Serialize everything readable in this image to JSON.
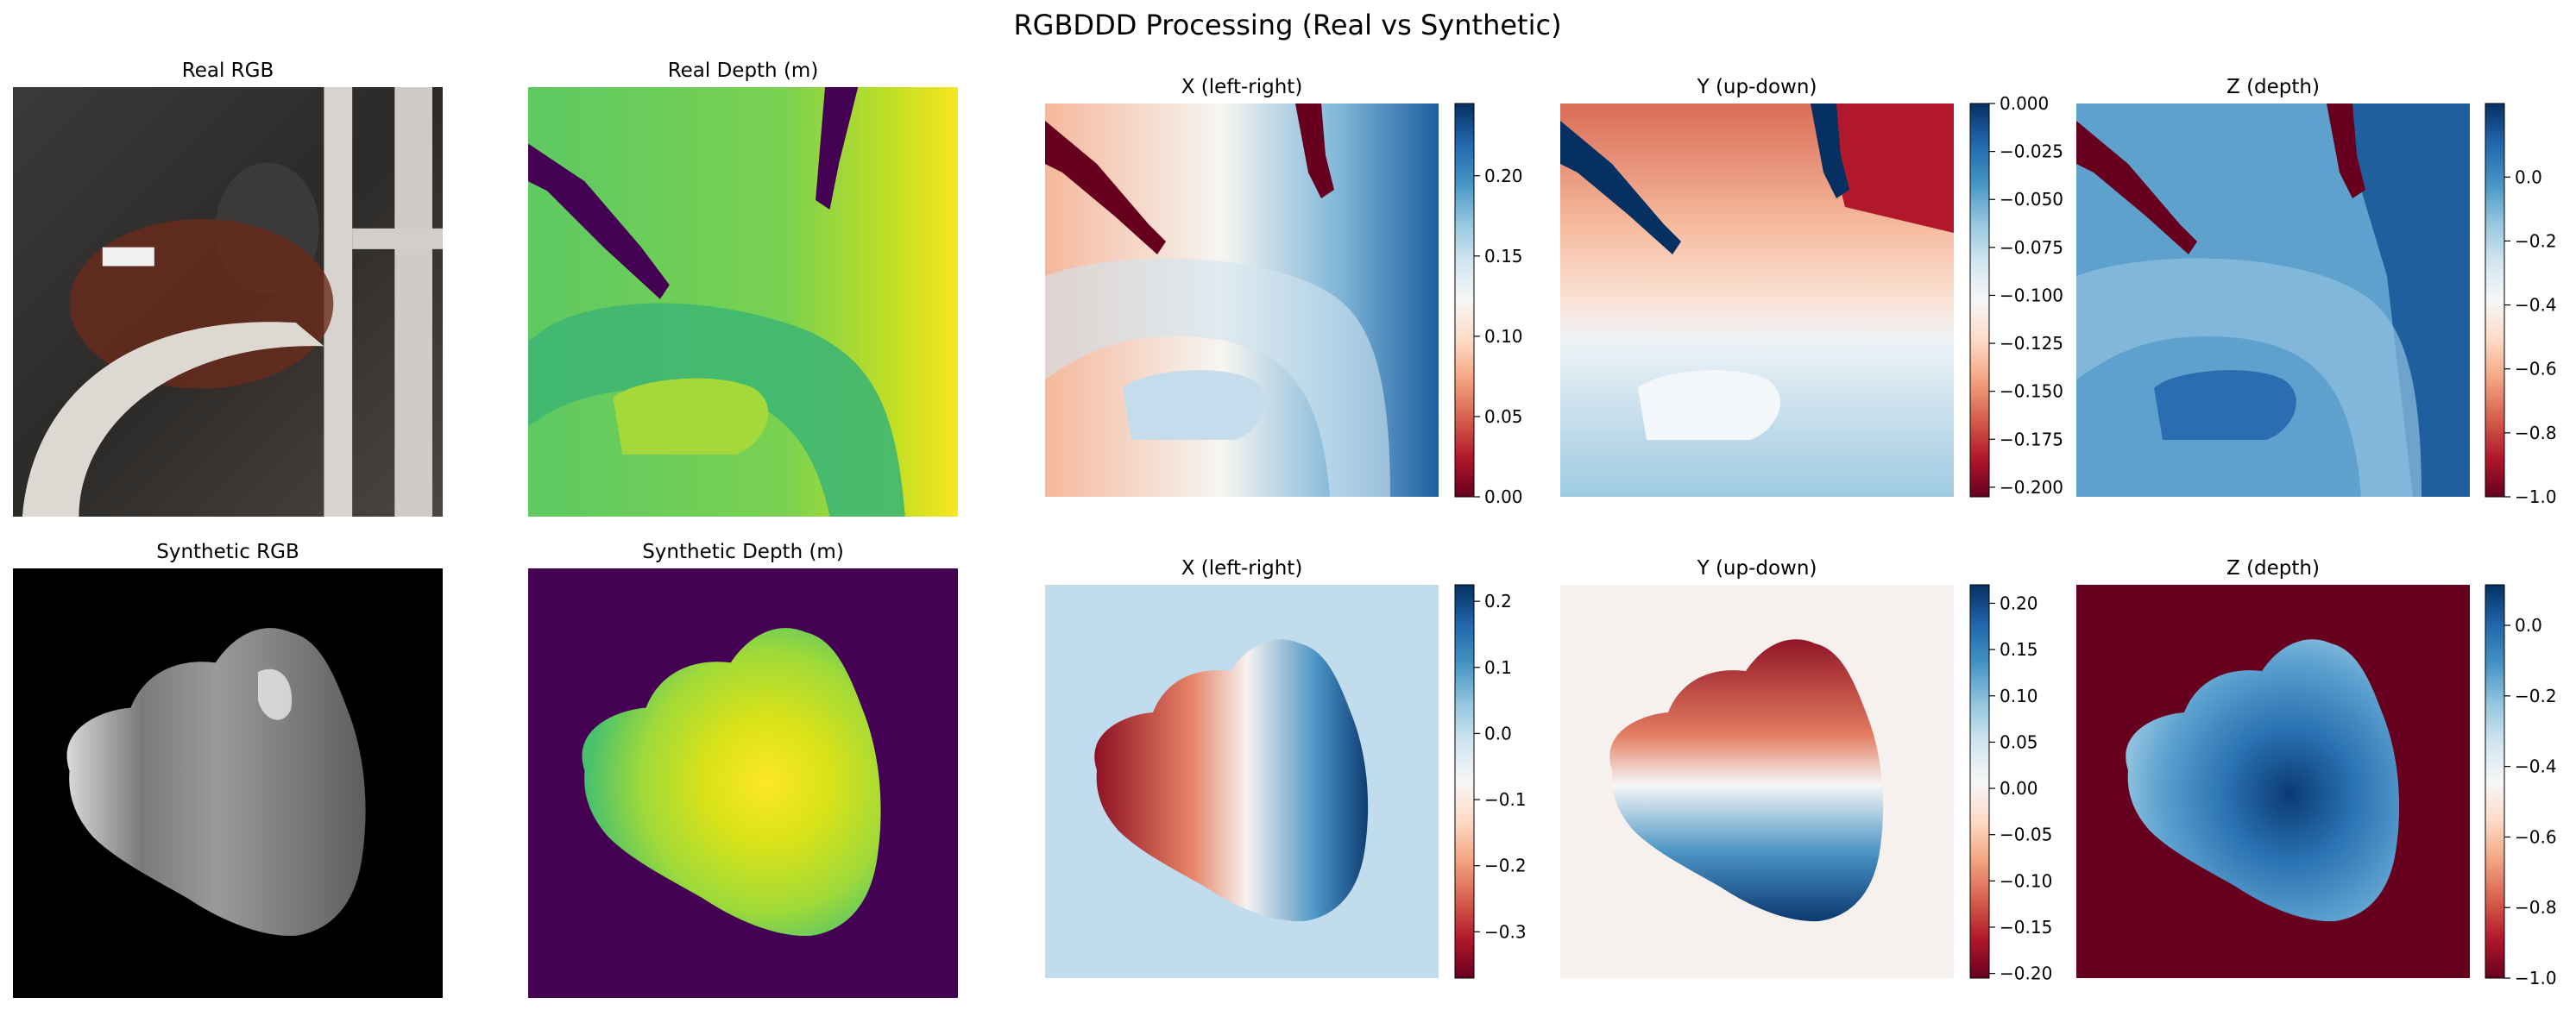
{
  "figure": {
    "title": "RGBDDD Processing (Real vs Synthetic)"
  },
  "chart_data": [
    {
      "type": "heatmap",
      "title": "Real RGB",
      "content": "photo crop of head and steering wheel",
      "colorbar": false
    },
    {
      "type": "heatmap",
      "title": "Real Depth (m)",
      "colormap": "viridis",
      "colorbar": false
    },
    {
      "type": "heatmap",
      "title": "X (left-right)",
      "colormap": "RdBu",
      "colorbar": true,
      "colorbar_range": [
        0.0,
        0.245
      ],
      "colorbar_ticks": [
        "0.00",
        "0.05",
        "0.10",
        "0.15",
        "0.20"
      ],
      "colorbar_tick_values": [
        0.0,
        0.05,
        0.1,
        0.15,
        0.2
      ]
    },
    {
      "type": "heatmap",
      "title": "Y (up-down)",
      "colormap": "RdBu",
      "colorbar": true,
      "colorbar_range": [
        -0.205,
        0.0
      ],
      "colorbar_ticks": [
        "0.000",
        "−0.025",
        "−0.050",
        "−0.075",
        "−0.100",
        "−0.125",
        "−0.150",
        "−0.175",
        "−0.200"
      ],
      "colorbar_tick_values": [
        0.0,
        -0.025,
        -0.05,
        -0.075,
        -0.1,
        -0.125,
        -0.15,
        -0.175,
        -0.2
      ]
    },
    {
      "type": "heatmap",
      "title": "Z (depth)",
      "colormap": "RdBu",
      "colorbar": true,
      "colorbar_range": [
        -1.0,
        0.23
      ],
      "colorbar_ticks": [
        "0.0",
        "−0.2",
        "−0.4",
        "−0.6",
        "−0.8",
        "−1.0"
      ],
      "colorbar_tick_values": [
        0.0,
        -0.2,
        -0.4,
        -0.6,
        -0.8,
        -1.0
      ]
    },
    {
      "type": "heatmap",
      "title": "Synthetic RGB",
      "content": "gray rendered head shape on black background",
      "colorbar": false
    },
    {
      "type": "heatmap",
      "title": "Synthetic Depth (m)",
      "colormap": "viridis",
      "colorbar": false
    },
    {
      "type": "heatmap",
      "title": "X (left-right)",
      "colormap": "RdBu",
      "colorbar": true,
      "colorbar_range": [
        -0.37,
        0.225
      ],
      "colorbar_ticks": [
        "0.2",
        "0.1",
        "0.0",
        "−0.1",
        "−0.2",
        "−0.3"
      ],
      "colorbar_tick_values": [
        0.2,
        0.1,
        0.0,
        -0.1,
        -0.2,
        -0.3
      ]
    },
    {
      "type": "heatmap",
      "title": "Y (up-down)",
      "colormap": "RdBu",
      "colorbar": true,
      "colorbar_range": [
        -0.205,
        0.22
      ],
      "colorbar_ticks": [
        "0.20",
        "0.15",
        "0.10",
        "0.05",
        "0.00",
        "−0.05",
        "−0.10",
        "−0.15",
        "−0.20"
      ],
      "colorbar_tick_values": [
        0.2,
        0.15,
        0.1,
        0.05,
        0.0,
        -0.05,
        -0.1,
        -0.15,
        -0.2
      ]
    },
    {
      "type": "heatmap",
      "title": "Z (depth)",
      "colormap": "RdBu",
      "colorbar": true,
      "colorbar_range": [
        -1.0,
        0.115
      ],
      "colorbar_ticks": [
        "0.0",
        "−0.2",
        "−0.4",
        "−0.6",
        "−0.8",
        "−1.0"
      ],
      "colorbar_tick_values": [
        0.0,
        -0.2,
        -0.4,
        -0.6,
        -0.8,
        -1.0
      ]
    }
  ]
}
